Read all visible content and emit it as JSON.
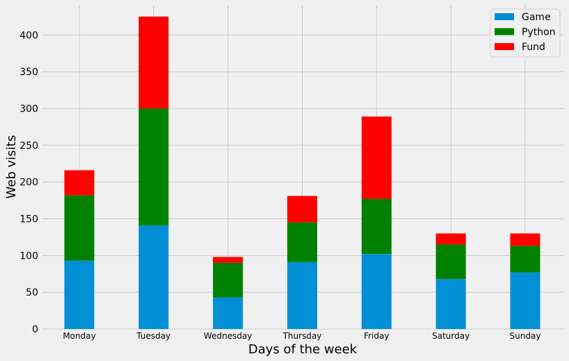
{
  "chart_data": {
    "type": "bar",
    "stacked": true,
    "categories": [
      "Monday",
      "Tuesday",
      "Wednesday",
      "Thursday",
      "Friday",
      "Saturday",
      "Sunday"
    ],
    "series": [
      {
        "name": "Game",
        "color": "#008fd5",
        "values": [
          93,
          141,
          43,
          91,
          102,
          68,
          77
        ]
      },
      {
        "name": "Python",
        "color": "#008000",
        "values": [
          89,
          159,
          47,
          54,
          75,
          47,
          36
        ]
      },
      {
        "name": "Fund",
        "color": "#ff0000",
        "values": [
          34,
          125,
          8,
          36,
          112,
          15,
          17
        ]
      }
    ],
    "xlabel": "Days of the week",
    "ylabel": "Web visits",
    "ylim": [
      0,
      440
    ],
    "yticks": [
      0,
      50,
      100,
      150,
      200,
      250,
      300,
      350,
      400
    ],
    "grid": true,
    "legend_position": "top-right",
    "background": "#f0f0f0",
    "grid_color": "#cbcbcb"
  }
}
